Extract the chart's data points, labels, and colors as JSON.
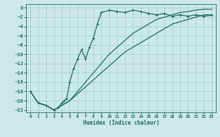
{
  "xlabel": "Humidex (Indice chaleur)",
  "background_color": "#cce8e8",
  "grid_color": "#99cccc",
  "line_color": "#1a6b5a",
  "xlim": [
    -0.5,
    23.5
  ],
  "ylim": [
    -22.5,
    0.8
  ],
  "xticks": [
    0,
    1,
    2,
    3,
    4,
    5,
    6,
    7,
    8,
    9,
    10,
    11,
    12,
    13,
    14,
    15,
    16,
    17,
    18,
    19,
    20,
    21,
    22,
    23
  ],
  "yticks": [
    0,
    -2,
    -4,
    -6,
    -8,
    -10,
    -12,
    -14,
    -16,
    -18,
    -20,
    -22
  ],
  "curve1_x": [
    0,
    1,
    2,
    3,
    3.5,
    4,
    4.3,
    4.6,
    5,
    5.5,
    6,
    6.5,
    7,
    7.5,
    8,
    8.5,
    9,
    10,
    11,
    12,
    13,
    14,
    15,
    16,
    17,
    18,
    19,
    20,
    21,
    22,
    23
  ],
  "curve1_y": [
    -18,
    -20.5,
    -21,
    -22,
    -21.5,
    -20.5,
    -20,
    -19.5,
    -16,
    -13,
    -11,
    -9,
    -11,
    -8.5,
    -6.5,
    -3.5,
    -1,
    -0.5,
    -0.8,
    -1,
    -0.5,
    -0.8,
    -1.2,
    -1.5,
    -1.2,
    -1.8,
    -1.5,
    -1.8,
    -1.5,
    -1.8,
    -1.6
  ],
  "curve2_x": [
    0,
    1,
    2,
    3,
    4,
    5,
    6,
    7,
    8,
    9,
    10,
    11,
    12,
    13,
    14,
    15,
    16,
    17,
    18,
    19,
    20,
    21,
    22,
    23
  ],
  "curve2_y": [
    -18,
    -20.5,
    -21,
    -22,
    -21,
    -20,
    -18.5,
    -17,
    -15.5,
    -14,
    -12.5,
    -11,
    -9.5,
    -8.5,
    -7.5,
    -6.5,
    -5.5,
    -4.5,
    -3.5,
    -3,
    -2.5,
    -2,
    -1.5,
    -1.5
  ],
  "curve3_x": [
    0,
    1,
    2,
    3,
    4,
    5,
    6,
    7,
    8,
    9,
    10,
    11,
    12,
    13,
    14,
    15,
    16,
    17,
    18,
    19,
    20,
    21,
    22,
    23
  ],
  "curve3_y": [
    -18,
    -20.5,
    -21,
    -22,
    -21,
    -20,
    -18,
    -16,
    -14,
    -12,
    -10,
    -8.5,
    -7,
    -5.5,
    -4.5,
    -3.5,
    -2.5,
    -2,
    -1.5,
    -1,
    -0.8,
    -0.5,
    -0.3,
    -0.3
  ]
}
